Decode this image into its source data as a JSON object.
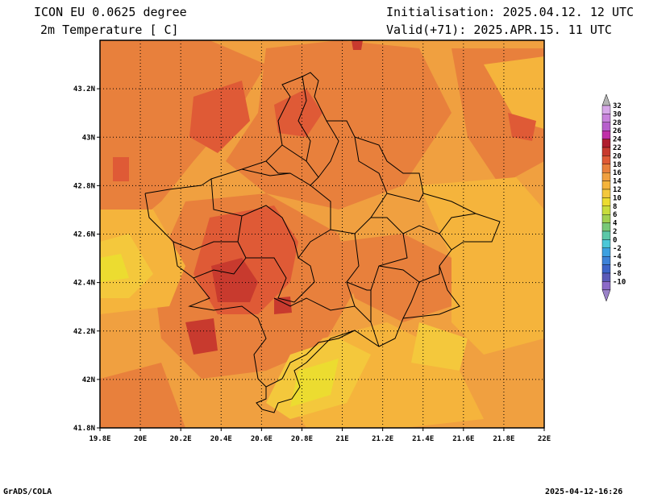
{
  "header": {
    "model": "ICON EU 0.0625 degree",
    "variable": "2m Temperature [ C]",
    "init": "Initialisation: 2025.04.12. 12 UTC",
    "valid": "Valid(+71): 2025.APR.15. 11 UTC"
  },
  "footer": {
    "credit": "GrADS/COLA",
    "timestamp": "2025-04-12-16:26"
  },
  "map": {
    "lon_ticks": [
      "19.8E",
      "20E",
      "20.2E",
      "20.4E",
      "20.6E",
      "20.8E",
      "21E",
      "21.2E",
      "21.4E",
      "21.6E",
      "21.8E",
      "22E"
    ],
    "lat_ticks": [
      "43.2N",
      "43N",
      "42.8N",
      "42.6N",
      "42.4N",
      "42.2N",
      "42N",
      "41.8N"
    ],
    "lon_range": [
      19.8,
      22.0
    ],
    "lat_range": [
      41.8,
      43.4
    ],
    "grid": "dotted"
  },
  "colorbar": {
    "levels": [
      "32",
      "30",
      "28",
      "26",
      "24",
      "22",
      "20",
      "18",
      "16",
      "14",
      "12",
      "10",
      "8",
      "6",
      "4",
      "2",
      "0",
      "-2",
      "-4",
      "-6",
      "-8",
      "-10"
    ],
    "colors": [
      "#d7a8e8",
      "#c882dc",
      "#b75fcc",
      "#c02fa8",
      "#b01e2e",
      "#c83a2e",
      "#df5a36",
      "#e8803c",
      "#f0a040",
      "#f5b43c",
      "#f4c83c",
      "#ecdc30",
      "#c8dc3c",
      "#a0d050",
      "#78c878",
      "#5cc8a8",
      "#4cc8d8",
      "#3ca0e0",
      "#3c82d8",
      "#3c64c8",
      "#5a5ab8",
      "#8c6ac8"
    ]
  }
}
